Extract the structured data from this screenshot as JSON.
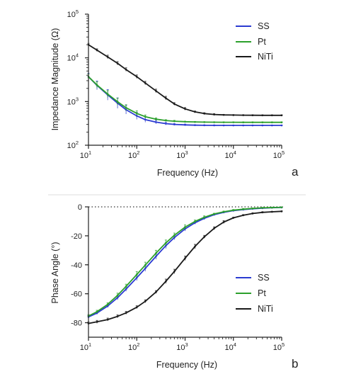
{
  "chart_data": [
    {
      "panel": "a",
      "type": "line",
      "xscale": "log",
      "yscale": "log",
      "xlim": [
        10,
        100000
      ],
      "ylim": [
        100,
        100000
      ],
      "xlabel": "Frequency (Hz)",
      "ylabel": "Impedance Magnitude (Ω)",
      "xticks": [
        {
          "base": "10",
          "exp": "1"
        },
        {
          "base": "10",
          "exp": "2"
        },
        {
          "base": "10",
          "exp": "3"
        },
        {
          "base": "10",
          "exp": "4"
        },
        {
          "base": "10",
          "exp": "5"
        }
      ],
      "yticks": [
        {
          "base": "10",
          "exp": "2"
        },
        {
          "base": "10",
          "exp": "3"
        },
        {
          "base": "10",
          "exp": "4"
        },
        {
          "base": "10",
          "exp": "5"
        }
      ],
      "legend_position": "top-right",
      "colors": {
        "SS": "#2b3bd1",
        "Pt": "#2ca02c",
        "NiTi": "#1a1a1a"
      },
      "series": [
        {
          "name": "SS",
          "x": [
            10,
            15,
            25,
            40,
            60,
            100,
            150,
            250,
            400,
            600,
            1000,
            1600,
            2500,
            4000,
            6300,
            10000,
            16000,
            25000,
            40000,
            63000,
            100000
          ],
          "y": [
            3700,
            2350,
            1420,
            920,
            650,
            470,
            385,
            338,
            312,
            300,
            292,
            288,
            286,
            285,
            284,
            284,
            284,
            284,
            284,
            284,
            284
          ],
          "err": [
            0.08,
            0.1,
            0.12,
            0.12,
            0.1,
            0.08,
            0.06,
            0.04,
            0.03,
            0.02,
            0.02,
            0.01,
            0.01,
            0.01,
            0.01,
            0.01,
            0.01,
            0.01,
            0.01,
            0.01,
            0.01
          ]
        },
        {
          "name": "Pt",
          "x": [
            10,
            15,
            25,
            40,
            60,
            100,
            150,
            250,
            400,
            600,
            1000,
            1600,
            2500,
            4000,
            6300,
            10000,
            16000,
            25000,
            40000,
            63000,
            100000
          ],
          "y": [
            3700,
            2400,
            1480,
            990,
            720,
            535,
            450,
            395,
            368,
            355,
            346,
            341,
            338,
            336,
            335,
            335,
            334,
            334,
            334,
            334,
            334
          ],
          "err": [
            0.06,
            0.07,
            0.08,
            0.08,
            0.07,
            0.06,
            0.04,
            0.03,
            0.02,
            0.02,
            0.01,
            0.01,
            0.01,
            0.01,
            0.01,
            0.01,
            0.01,
            0.01,
            0.01,
            0.01,
            0.01
          ]
        },
        {
          "name": "NiTi",
          "x": [
            10,
            15,
            25,
            40,
            60,
            100,
            150,
            250,
            400,
            600,
            1000,
            1600,
            2500,
            4000,
            6300,
            10000,
            16000,
            25000,
            40000,
            63000,
            100000
          ],
          "y": [
            20000,
            15000,
            10500,
            7500,
            5400,
            3700,
            2650,
            1750,
            1200,
            880,
            680,
            580,
            530,
            505,
            495,
            490,
            487,
            485,
            484,
            484,
            484
          ],
          "err": [
            0.03,
            0.03,
            0.04,
            0.04,
            0.04,
            0.04,
            0.04,
            0.04,
            0.04,
            0.03,
            0.03,
            0.02,
            0.02,
            0.02,
            0.01,
            0.01,
            0.01,
            0.01,
            0.01,
            0.01,
            0.01
          ]
        }
      ]
    },
    {
      "panel": "b",
      "type": "line",
      "xscale": "log",
      "yscale": "linear",
      "xlim": [
        10,
        100000
      ],
      "ylim": [
        -90,
        0
      ],
      "xlabel": "Frequency (Hz)",
      "ylabel": "Phase  Angle (°)",
      "xticks": [
        {
          "base": "10",
          "exp": "1"
        },
        {
          "base": "10",
          "exp": "2"
        },
        {
          "base": "10",
          "exp": "3"
        },
        {
          "base": "10",
          "exp": "4"
        },
        {
          "base": "10",
          "exp": "5"
        }
      ],
      "yticks": [
        {
          "value": 0,
          "label": "0"
        },
        {
          "value": -20,
          "label": "-20"
        },
        {
          "value": -40,
          "label": "-40"
        },
        {
          "value": -60,
          "label": "-60"
        },
        {
          "value": -80,
          "label": "-80"
        }
      ],
      "zero_reference_line": "dotted",
      "legend_position": "bottom-right",
      "colors": {
        "SS": "#2b3bd1",
        "Pt": "#2ca02c",
        "NiTi": "#1a1a1a"
      },
      "series": [
        {
          "name": "SS",
          "x": [
            10,
            15,
            25,
            40,
            60,
            100,
            150,
            250,
            400,
            600,
            1000,
            1600,
            2500,
            4000,
            6300,
            10000,
            16000,
            25000,
            40000,
            63000,
            100000
          ],
          "y": [
            -76,
            -73.3,
            -68.5,
            -62.7,
            -56.8,
            -48.9,
            -42.5,
            -34.2,
            -26.8,
            -21.2,
            -15.2,
            -11.0,
            -7.9,
            -5.4,
            -3.8,
            -2.6,
            -1.9,
            -1.3,
            -0.9,
            -0.6,
            -0.4
          ],
          "err": [
            1,
            1,
            1,
            1.5,
            1.5,
            2,
            2,
            2,
            2,
            1.5,
            1.5,
            1,
            1,
            0.5,
            0.5,
            0.5,
            0.5,
            0.3,
            0.3,
            0.3,
            0.3
          ]
        },
        {
          "name": "Pt",
          "x": [
            10,
            15,
            25,
            40,
            60,
            100,
            150,
            250,
            400,
            600,
            1000,
            1600,
            2500,
            4000,
            6300,
            10000,
            16000,
            25000,
            40000,
            63000,
            100000
          ],
          "y": [
            -75.4,
            -72.4,
            -67.3,
            -61.1,
            -54.9,
            -46.7,
            -40.2,
            -32.0,
            -24.9,
            -19.6,
            -14.0,
            -10.1,
            -7.2,
            -4.9,
            -3.4,
            -2.3,
            -1.6,
            -1.1,
            -0.7,
            -0.5,
            -0.3
          ],
          "err": [
            1,
            1,
            1,
            1.5,
            1.5,
            2,
            2,
            2,
            2,
            1.5,
            1.5,
            1,
            1,
            0.5,
            0.5,
            0.5,
            0.5,
            0.3,
            0.3,
            0.3,
            0.3
          ]
        },
        {
          "name": "NiTi",
          "x": [
            10,
            15,
            25,
            40,
            60,
            100,
            150,
            250,
            400,
            600,
            1000,
            1600,
            2500,
            4000,
            6300,
            10000,
            16000,
            25000,
            40000,
            63000,
            100000
          ],
          "y": [
            -80.5,
            -79.4,
            -77.8,
            -75.6,
            -73.2,
            -69.3,
            -65.2,
            -58.8,
            -51.4,
            -44.6,
            -35.5,
            -27.4,
            -20.7,
            -14.8,
            -10.5,
            -7.6,
            -5.8,
            -4.6,
            -3.8,
            -3.4,
            -3.1
          ],
          "err": [
            1,
            1,
            1,
            1,
            1,
            1,
            1,
            1,
            1.5,
            1.5,
            1.5,
            1.5,
            1,
            1,
            1,
            0.5,
            0.5,
            0.5,
            0.5,
            0.3,
            0.3
          ]
        }
      ]
    }
  ],
  "labels": {
    "panel_a": "a",
    "panel_b": "b"
  }
}
